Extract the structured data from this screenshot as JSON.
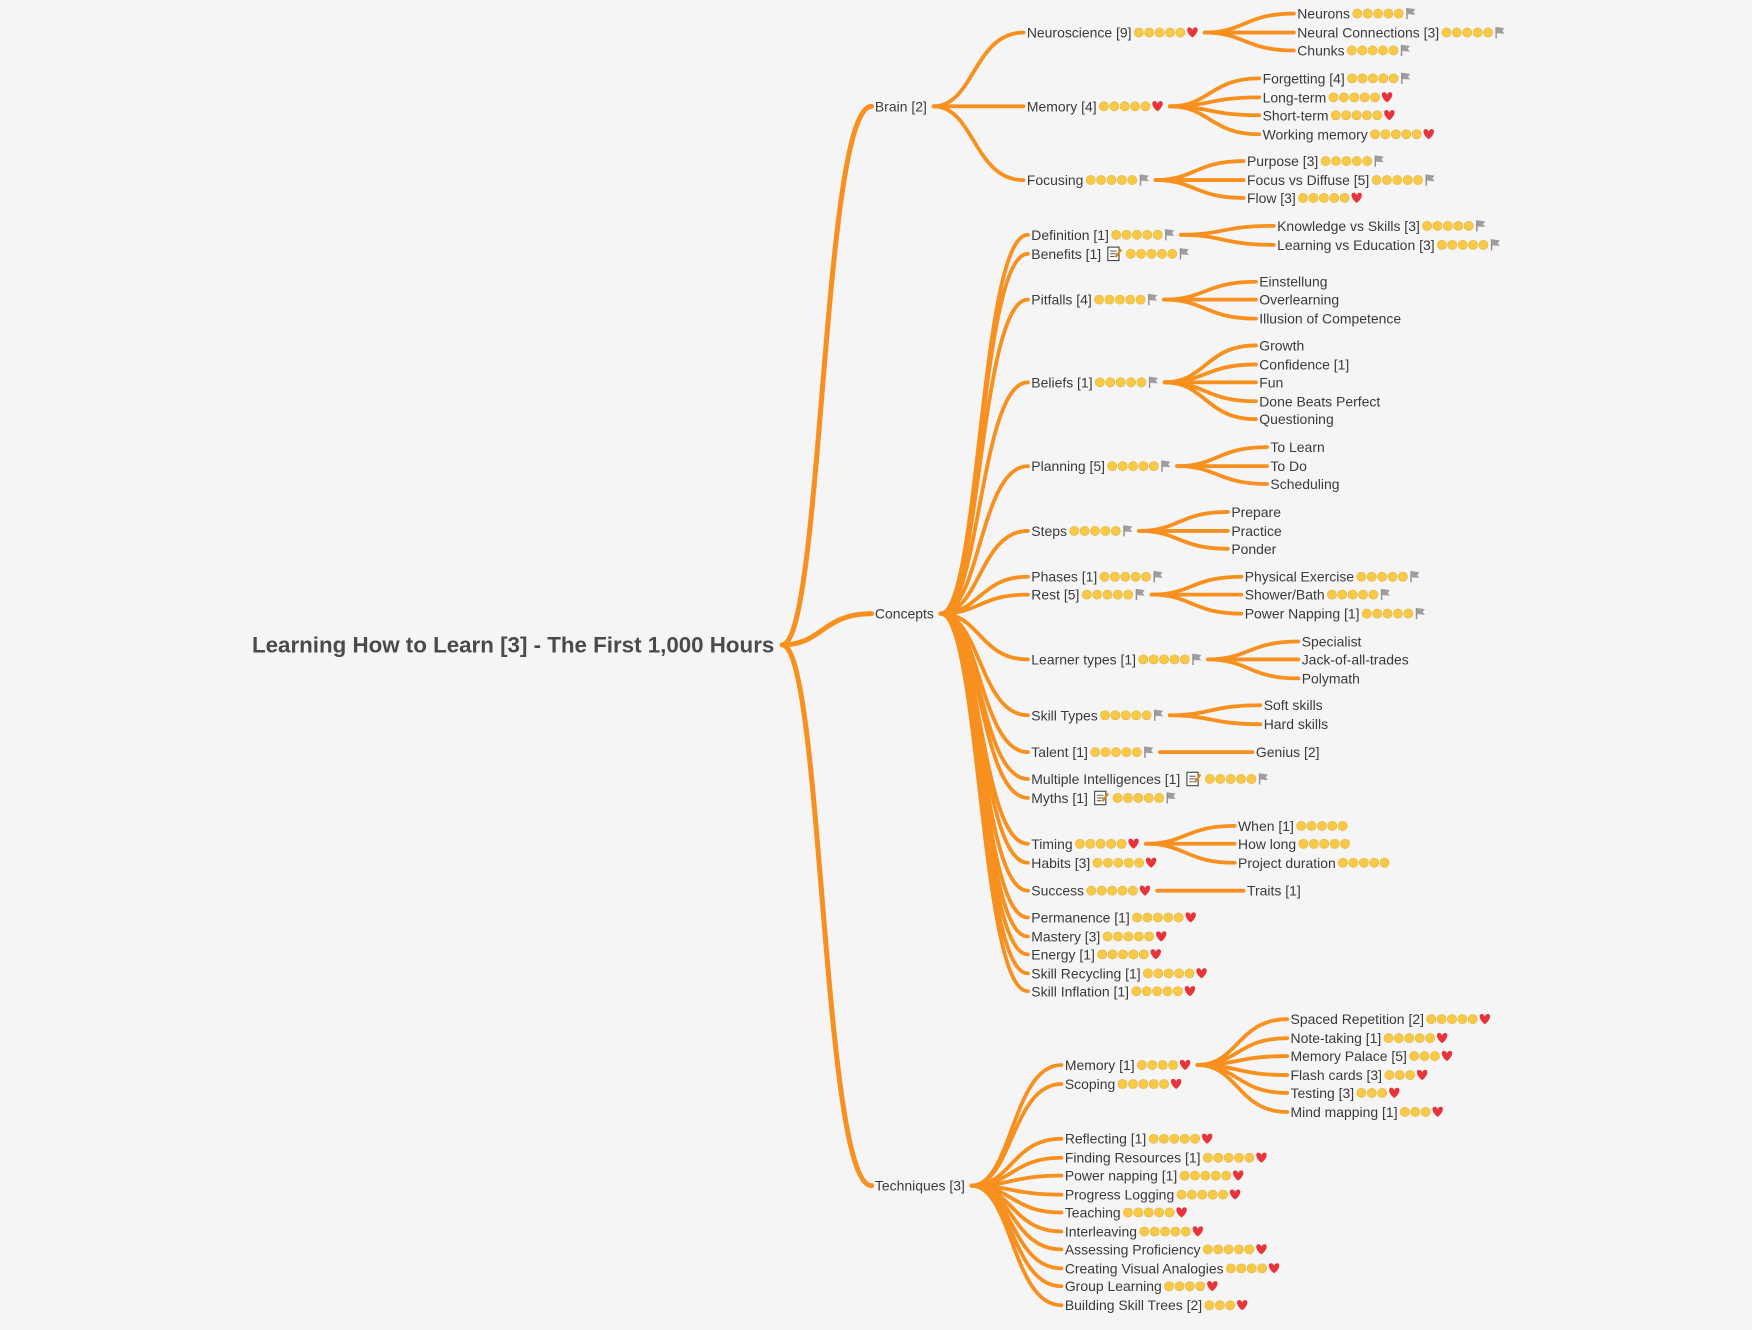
{
  "root": {
    "label": "Learning How to Learn [3] - The First 1,000 Hours",
    "children": [
      {
        "label": "Brain [2]",
        "children": [
          {
            "label": "Neuroscience [9]",
            "rating": 5,
            "icon": "heart",
            "children": [
              {
                "label": "Neurons",
                "rating": 5,
                "icon": "flag"
              },
              {
                "label": "Neural Connections [3]",
                "rating": 5,
                "icon": "flag"
              },
              {
                "label": "Chunks",
                "rating": 5,
                "icon": "flag"
              }
            ]
          },
          {
            "label": "Memory [4]",
            "rating": 5,
            "icon": "heart",
            "children": [
              {
                "label": "Forgetting [4]",
                "rating": 5,
                "icon": "flag"
              },
              {
                "label": "Long-term",
                "rating": 5,
                "icon": "heart"
              },
              {
                "label": "Short-term",
                "rating": 5,
                "icon": "heart"
              },
              {
                "label": "Working memory",
                "rating": 5,
                "icon": "heart"
              }
            ]
          },
          {
            "label": "Focusing",
            "rating": 5,
            "icon": "flag",
            "children": [
              {
                "label": "Purpose [3]",
                "rating": 5,
                "icon": "flag"
              },
              {
                "label": "Focus vs Diffuse [5]",
                "rating": 5,
                "icon": "flag"
              },
              {
                "label": "Flow [3]",
                "rating": 5,
                "icon": "heart"
              }
            ]
          }
        ]
      },
      {
        "label": "Concepts",
        "children": [
          {
            "label": "Definition [1]",
            "rating": 5,
            "icon": "flag",
            "children": [
              {
                "label": "Knowledge vs Skills [3]",
                "rating": 5,
                "icon": "flag"
              },
              {
                "label": "Learning vs Education [3]",
                "rating": 5,
                "icon": "flag"
              }
            ]
          },
          {
            "label": "Benefits [1]",
            "note": true,
            "rating": 5,
            "icon": "flag"
          },
          {
            "label": "Pitfalls [4]",
            "rating": 5,
            "icon": "flag",
            "children": [
              {
                "label": "Einstellung"
              },
              {
                "label": "Overlearning"
              },
              {
                "label": "Illusion of Competence"
              }
            ]
          },
          {
            "label": "Beliefs [1]",
            "rating": 5,
            "icon": "flag",
            "children": [
              {
                "label": "Growth"
              },
              {
                "label": "Confidence [1]"
              },
              {
                "label": "Fun"
              },
              {
                "label": "Done Beats Perfect"
              },
              {
                "label": "Questioning"
              }
            ]
          },
          {
            "label": "Planning [5]",
            "rating": 5,
            "icon": "flag",
            "children": [
              {
                "label": "To Learn"
              },
              {
                "label": "To Do"
              },
              {
                "label": "Scheduling"
              }
            ]
          },
          {
            "label": "Steps",
            "rating": 5,
            "icon": "flag",
            "children": [
              {
                "label": "Prepare"
              },
              {
                "label": "Practice"
              },
              {
                "label": "Ponder"
              }
            ]
          },
          {
            "label": "Phases [1]",
            "rating": 5,
            "icon": "flag"
          },
          {
            "label": "Rest [5]",
            "rating": 5,
            "icon": "flag",
            "children": [
              {
                "label": "Physical Exercise",
                "rating": 5,
                "icon": "flag"
              },
              {
                "label": "Shower/Bath",
                "rating": 5,
                "icon": "flag"
              },
              {
                "label": "Power Napping [1]",
                "rating": 5,
                "icon": "flag"
              }
            ]
          },
          {
            "label": "Learner types [1]",
            "rating": 5,
            "icon": "flag",
            "children": [
              {
                "label": "Specialist"
              },
              {
                "label": "Jack-of-all-trades"
              },
              {
                "label": "Polymath"
              }
            ]
          },
          {
            "label": "Skill Types",
            "rating": 5,
            "icon": "flag",
            "children": [
              {
                "label": "Soft skills"
              },
              {
                "label": "Hard skills"
              }
            ]
          },
          {
            "label": "Talent [1]",
            "rating": 5,
            "icon": "flag",
            "children": [
              {
                "label": "Genius [2]"
              }
            ]
          },
          {
            "label": "Multiple Intelligences [1]",
            "note": true,
            "rating": 5,
            "icon": "flag"
          },
          {
            "label": "Myths [1]",
            "note": true,
            "rating": 5,
            "icon": "flag"
          },
          {
            "label": "Timing",
            "rating": 5,
            "icon": "heart",
            "children": [
              {
                "label": "When [1]",
                "rating": 5
              },
              {
                "label": "How long",
                "rating": 5
              },
              {
                "label": "Project duration",
                "rating": 5
              }
            ]
          },
          {
            "label": "Habits [3]",
            "rating": 5,
            "icon": "heart"
          },
          {
            "label": "Success",
            "rating": 5,
            "icon": "heart",
            "children": [
              {
                "label": "Traits [1]"
              }
            ]
          },
          {
            "label": "Permanence [1]",
            "rating": 5,
            "icon": "heart"
          },
          {
            "label": "Mastery [3]",
            "rating": 5,
            "icon": "heart"
          },
          {
            "label": "Energy [1]",
            "rating": 5,
            "icon": "heart"
          },
          {
            "label": "Skill Recycling [1]",
            "rating": 5,
            "icon": "heart"
          },
          {
            "label": "Skill Inflation [1]",
            "rating": 5,
            "icon": "heart"
          }
        ]
      },
      {
        "label": "Techniques [3]",
        "children": [
          {
            "label": "Memory [1]",
            "rating": 4,
            "icon": "heart",
            "children": [
              {
                "label": "Spaced Repetition [2]",
                "rating": 5,
                "icon": "heart"
              },
              {
                "label": "Note-taking [1]",
                "rating": 5,
                "icon": "heart"
              },
              {
                "label": "Memory Palace [5]",
                "rating": 3,
                "icon": "heart"
              },
              {
                "label": "Flash cards [3]",
                "rating": 3,
                "icon": "heart"
              },
              {
                "label": "Testing [3]",
                "rating": 3,
                "icon": "heart"
              },
              {
                "label": "Mind mapping [1]",
                "rating": 3,
                "icon": "heart"
              }
            ]
          },
          {
            "label": "Scoping",
            "rating": 5,
            "icon": "heart"
          },
          {
            "label": "Reflecting [1]",
            "rating": 5,
            "icon": "heart"
          },
          {
            "label": "Finding Resources [1]",
            "rating": 5,
            "icon": "heart"
          },
          {
            "label": "Power napping [1]",
            "rating": 5,
            "icon": "heart"
          },
          {
            "label": "Progress Logging",
            "rating": 5,
            "icon": "heart"
          },
          {
            "label": "Teaching",
            "rating": 5,
            "icon": "heart"
          },
          {
            "label": "Interleaving",
            "rating": 5,
            "icon": "heart"
          },
          {
            "label": "Assessing Proficiency",
            "rating": 5,
            "icon": "heart"
          },
          {
            "label": "Creating Visual Analogies",
            "rating": 4,
            "icon": "heart"
          },
          {
            "label": "Group Learning",
            "rating": 4,
            "icon": "heart"
          },
          {
            "label": "Building Skill Trees [2]",
            "rating": 3,
            "icon": "heart"
          }
        ]
      }
    ]
  }
}
